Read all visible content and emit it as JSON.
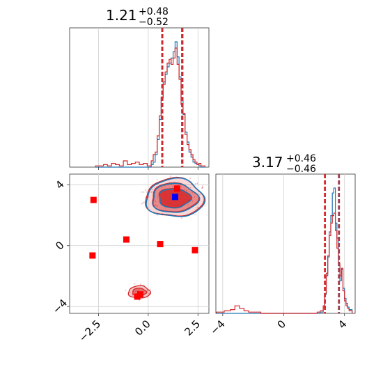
{
  "chart_data": {
    "type": "corner",
    "parameters": 2,
    "series": [
      {
        "color": "#1f77b4",
        "style": "filled histogram + contours (blue)"
      },
      {
        "color": "#d62728",
        "style": "histogram + filled contours + scatter markers (red)"
      }
    ],
    "panels": [
      {
        "id": "param1-marginal",
        "type": "histogram",
        "title": {
          "value": "1.21",
          "sup": "+0.48",
          "sub": "−0.52"
        },
        "xlim": [
          -3.95,
          3.05
        ],
        "quantile_lines": {
          "blue": [
            0.69,
            1.69
          ],
          "red": [
            0.72,
            1.73
          ]
        },
        "bins_x": [
          -2.65,
          -2.45,
          -2.25,
          -2.05,
          -1.85,
          -1.65,
          -1.45,
          -1.25,
          -1.05,
          -0.85,
          -0.65,
          -0.45,
          -0.25,
          -0.05,
          0.15,
          0.25,
          0.35,
          0.45,
          0.55,
          0.65,
          0.75,
          0.85,
          0.95,
          1.05,
          1.15,
          1.25,
          1.35,
          1.45,
          1.55,
          1.65,
          1.75,
          1.85,
          1.95,
          2.05,
          2.15,
          2.25,
          2.35,
          2.45,
          2.55,
          2.65,
          2.85
        ],
        "blue_counts": [
          0,
          0,
          0,
          0,
          0,
          0,
          0,
          0,
          0,
          0,
          0,
          0,
          0,
          0,
          0.02,
          0.04,
          0.1,
          0.22,
          0.38,
          0.55,
          0.68,
          0.74,
          0.8,
          0.83,
          0.87,
          0.92,
          1.0,
          0.88,
          0.72,
          0.55,
          0.42,
          0.28,
          0.2,
          0.12,
          0.08,
          0.04,
          0.03,
          0.02,
          0.01,
          0,
          0
        ],
        "red_counts": [
          0.01,
          0.01,
          0.02,
          0.01,
          0.03,
          0.02,
          0.01,
          0.05,
          0.02,
          0.03,
          0.04,
          0.02,
          0.03,
          0.01,
          0.05,
          0.1,
          0.12,
          0.25,
          0.41,
          0.56,
          0.66,
          0.76,
          0.83,
          0.86,
          0.82,
          0.87,
          0.95,
          0.82,
          0.7,
          0.5,
          0.43,
          0.26,
          0.18,
          0.14,
          0.1,
          0.06,
          0.04,
          0.02,
          0.03,
          0.01,
          0.01
        ]
      },
      {
        "id": "param2-marginal",
        "type": "histogram",
        "title": {
          "value": "3.17",
          "sup": "+0.46",
          "sub": "−0.46"
        },
        "xlim": [
          -4.45,
          4.7
        ],
        "xticks": [
          {
            "v": -4,
            "label": "−4"
          },
          {
            "v": 0,
            "label": "0"
          },
          {
            "v": 4,
            "label": "4"
          }
        ],
        "quantile_lines": {
          "blue": [
            2.73,
            3.62
          ],
          "red": [
            2.7,
            3.65
          ]
        },
        "bins_x": [
          -4.4,
          -3.9,
          -3.5,
          -3.2,
          -2.9,
          -2.6,
          -2.3,
          -2.0,
          -1.5,
          -1.0,
          0,
          1.0,
          1.8,
          2.2,
          2.4,
          2.6,
          2.7,
          2.8,
          2.9,
          3.0,
          3.1,
          3.2,
          3.3,
          3.4,
          3.5,
          3.6,
          3.7,
          3.8,
          3.9,
          4.0,
          4.1,
          4.2,
          4.3,
          4.5
        ],
        "blue_counts": [
          0,
          0,
          0,
          0,
          0,
          0,
          0,
          0,
          0,
          0,
          0,
          0,
          0,
          0,
          0.01,
          0.05,
          0.15,
          0.3,
          0.45,
          0.65,
          0.78,
          0.96,
          1.0,
          0.72,
          0.6,
          0.38,
          0.26,
          0.35,
          0.2,
          0.12,
          0.08,
          0.05,
          0.03,
          0.01
        ],
        "red_counts": [
          0.01,
          0.02,
          0.03,
          0.06,
          0.04,
          0.02,
          0.01,
          0.01,
          0.0,
          0.0,
          0.0,
          0.0,
          0.0,
          0.01,
          0.02,
          0.06,
          0.16,
          0.32,
          0.46,
          0.62,
          0.72,
          0.78,
          0.8,
          0.66,
          0.52,
          0.4,
          0.3,
          0.36,
          0.18,
          0.1,
          0.06,
          0.04,
          0.02,
          0.01
        ]
      },
      {
        "id": "joint-2d",
        "type": "contour-scatter",
        "xlim": [
          -3.95,
          3.05
        ],
        "ylim": [
          -4.45,
          4.7
        ],
        "xticks": [
          {
            "v": -2.5,
            "label": "−2.5"
          },
          {
            "v": 0.0,
            "label": "0.0"
          },
          {
            "v": 2.5,
            "label": "2.5"
          }
        ],
        "yticks": [
          {
            "v": -4,
            "label": "−4"
          },
          {
            "v": 0,
            "label": "0"
          },
          {
            "v": 4,
            "label": "4"
          }
        ],
        "blue_peak": {
          "x": 1.35,
          "y": 3.2
        },
        "red_markers": [
          {
            "x": -2.75,
            "y": 3.0
          },
          {
            "x": 1.45,
            "y": 3.75
          },
          {
            "x": -1.1,
            "y": 0.4
          },
          {
            "x": 0.6,
            "y": 0.1
          },
          {
            "x": 2.35,
            "y": -0.3
          },
          {
            "x": -2.8,
            "y": -0.65
          },
          {
            "x": -0.4,
            "y": -3.2
          },
          {
            "x": -0.55,
            "y": -3.35
          }
        ],
        "main_mode": {
          "cx": 1.3,
          "cy": 3.15,
          "levels": [
            [
              1.45,
              1.25
            ],
            [
              1.15,
              0.95
            ],
            [
              0.8,
              0.62
            ]
          ]
        },
        "secondary_mode": {
          "cx": -0.45,
          "cy": -3.05,
          "levels": [
            [
              0.55,
              0.4
            ],
            [
              0.35,
              0.25
            ]
          ]
        }
      }
    ]
  }
}
